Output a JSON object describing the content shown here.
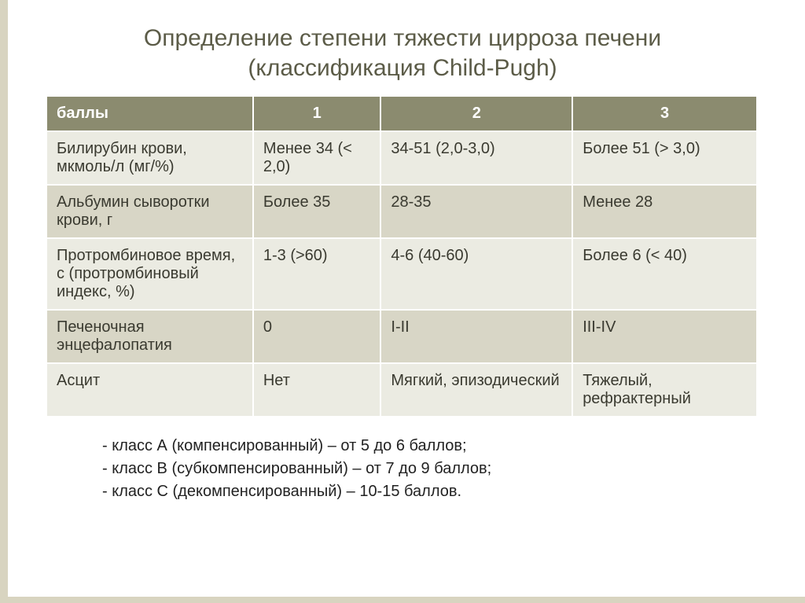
{
  "title_line1": "Определение степени тяжести цирроза печени",
  "title_line2": "(классификация Child-Pugh)",
  "table": {
    "header": [
      "баллы",
      "1",
      "2",
      "3"
    ],
    "rows": [
      [
        "Билирубин крови, мкмоль/л (мг/%)",
        "Менее 34 (< 2,0)",
        "34-51 (2,0-3,0)",
        "Более 51 (> 3,0)"
      ],
      [
        "Альбумин сыворотки крови, г",
        "Более 35",
        "28-35",
        "Менее 28"
      ],
      [
        "Протромбиновое время, с (протромбиновый индекс, %)",
        "1-3 (>60)",
        "4-6 (40-60)",
        "Более 6 (< 40)"
      ],
      [
        "Печеночная энцефалопатия",
        "0",
        "I-II",
        "III-IV"
      ],
      [
        "Асцит",
        "Нет",
        "Мягкий, эпизодический",
        "Тяжелый, рефрактерный"
      ]
    ],
    "header_bg": "#8b8b6f",
    "header_fg": "#ffffff",
    "row_odd_bg": "#ebebe2",
    "row_even_bg": "#d8d6c6",
    "border_color": "#ffffff",
    "font_size": 20
  },
  "notes": [
    "- класс А (компенсированный) – от 5 до 6 баллов;",
    "- класс В (субкомпенсированный) – от 7 до 9 баллов;",
    "- класс С (декомпенсированный) – 10-15 баллов."
  ],
  "colors": {
    "title_color": "#5c5c48",
    "decor_color": "#d8d4c0",
    "background": "#ffffff"
  }
}
